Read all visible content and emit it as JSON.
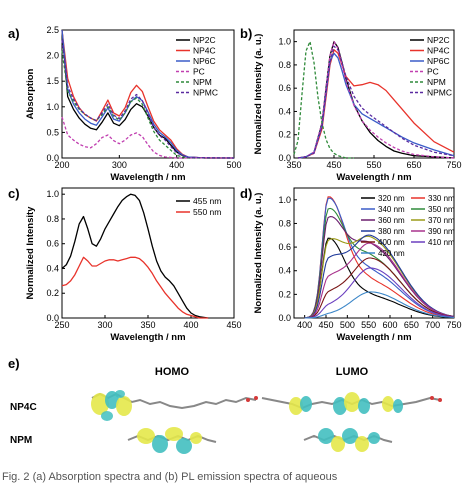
{
  "caption": "Fig. 2 (a) Absorption spectra and (b) PL emission spectra of aqueous",
  "chart_data": [
    {
      "panel": "a)",
      "type": "line",
      "xlabel": "Wavelength / nm",
      "ylabel": "Absorption",
      "xlim": [
        200,
        500
      ],
      "ylim": [
        0,
        2.5
      ],
      "xticks": [
        200,
        300,
        400,
        500
      ],
      "yticks": [
        0.0,
        0.5,
        1.0,
        1.5,
        2.0,
        2.5
      ],
      "legend": "top-right",
      "series": [
        {
          "name": "NP2C",
          "color": "#000000",
          "dash": false,
          "x": [
            200,
            210,
            220,
            230,
            240,
            250,
            260,
            270,
            280,
            290,
            300,
            310,
            320,
            330,
            340,
            350,
            360,
            370,
            380,
            390,
            400,
            410,
            420,
            450,
            500
          ],
          "y": [
            2.5,
            1.2,
            0.95,
            0.78,
            0.66,
            0.58,
            0.55,
            0.7,
            0.88,
            0.68,
            0.63,
            0.75,
            0.95,
            1.06,
            1.0,
            0.82,
            0.6,
            0.45,
            0.38,
            0.25,
            0.12,
            0.05,
            0.02,
            0.0,
            0.0
          ]
        },
        {
          "name": "NP4C",
          "color": "#e8332b",
          "dash": false,
          "x": [
            200,
            210,
            220,
            230,
            240,
            250,
            260,
            270,
            280,
            290,
            300,
            310,
            320,
            330,
            340,
            350,
            360,
            370,
            380,
            390,
            400,
            410,
            420,
            450,
            500
          ],
          "y": [
            2.5,
            1.55,
            1.2,
            0.98,
            0.85,
            0.78,
            0.72,
            0.92,
            1.13,
            0.88,
            0.82,
            0.98,
            1.28,
            1.42,
            1.3,
            1.0,
            0.72,
            0.55,
            0.45,
            0.35,
            0.18,
            0.07,
            0.02,
            0.0,
            0.0
          ]
        },
        {
          "name": "NP6C",
          "color": "#3a5cc8",
          "dash": false,
          "x": [
            200,
            210,
            220,
            230,
            240,
            250,
            260,
            270,
            280,
            290,
            300,
            310,
            320,
            330,
            340,
            350,
            360,
            370,
            380,
            390,
            400,
            410,
            420,
            450,
            500
          ],
          "y": [
            2.5,
            1.35,
            1.05,
            0.88,
            0.76,
            0.68,
            0.64,
            0.8,
            0.98,
            0.76,
            0.72,
            0.88,
            1.1,
            1.2,
            1.12,
            0.9,
            0.66,
            0.5,
            0.41,
            0.3,
            0.15,
            0.06,
            0.02,
            0.0,
            0.0
          ]
        },
        {
          "name": "PC",
          "color": "#c13fb0",
          "dash": true,
          "x": [
            200,
            210,
            220,
            230,
            240,
            250,
            260,
            270,
            280,
            290,
            300,
            310,
            320,
            330,
            340,
            350,
            360,
            370,
            380,
            400,
            500
          ],
          "y": [
            0.8,
            0.45,
            0.35,
            0.27,
            0.22,
            0.2,
            0.28,
            0.4,
            0.45,
            0.34,
            0.28,
            0.35,
            0.45,
            0.49,
            0.42,
            0.26,
            0.12,
            0.05,
            0.02,
            0.0,
            0.0
          ]
        },
        {
          "name": "NPM",
          "color": "#2f8a3a",
          "dash": true,
          "x": [
            200,
            210,
            220,
            230,
            240,
            250,
            260,
            270,
            280,
            290,
            300,
            310,
            320,
            330,
            340,
            350,
            360,
            370,
            380,
            390,
            400,
            420,
            500
          ],
          "y": [
            2.1,
            1.3,
            1.1,
            0.95,
            0.85,
            0.78,
            0.73,
            0.85,
            1.0,
            0.82,
            0.74,
            0.88,
            1.1,
            1.17,
            1.05,
            0.78,
            0.52,
            0.35,
            0.25,
            0.15,
            0.05,
            0.0,
            0.0
          ]
        },
        {
          "name": "NPMC",
          "color": "#5a2aa0",
          "dash": true,
          "x": [
            200,
            210,
            220,
            230,
            240,
            250,
            260,
            270,
            280,
            290,
            300,
            310,
            320,
            330,
            340,
            350,
            360,
            370,
            380,
            390,
            400,
            420,
            500
          ],
          "y": [
            2.3,
            1.4,
            1.15,
            0.97,
            0.86,
            0.78,
            0.73,
            0.88,
            1.05,
            0.84,
            0.77,
            0.92,
            1.15,
            1.24,
            1.12,
            0.86,
            0.6,
            0.44,
            0.35,
            0.22,
            0.1,
            0.01,
            0.0
          ]
        }
      ]
    },
    {
      "panel": "b)",
      "type": "line",
      "xlabel": "Wavelength / nm",
      "ylabel": "Normalized Intensity (a. u.)",
      "xlim": [
        350,
        750
      ],
      "ylim": [
        0,
        1.1
      ],
      "xticks": [
        350,
        450,
        550,
        650,
        750
      ],
      "yticks": [
        0.0,
        0.2,
        0.4,
        0.6,
        0.8,
        1.0
      ],
      "legend": "top-right",
      "series": [
        {
          "name": "NP2C",
          "color": "#000000",
          "dash": false,
          "x": [
            360,
            380,
            400,
            420,
            430,
            440,
            450,
            460,
            470,
            480,
            500,
            520,
            540,
            560,
            580,
            600,
            620,
            650,
            700,
            750
          ],
          "y": [
            0.0,
            0.01,
            0.05,
            0.3,
            0.6,
            0.88,
            1.0,
            0.95,
            0.82,
            0.68,
            0.46,
            0.32,
            0.22,
            0.15,
            0.1,
            0.06,
            0.04,
            0.02,
            0.01,
            0.0
          ]
        },
        {
          "name": "NP4C",
          "color": "#e8332b",
          "dash": false,
          "x": [
            360,
            380,
            400,
            420,
            430,
            440,
            450,
            460,
            470,
            480,
            500,
            520,
            540,
            560,
            580,
            600,
            620,
            650,
            700,
            750
          ],
          "y": [
            0.0,
            0.01,
            0.04,
            0.25,
            0.52,
            0.8,
            0.93,
            0.9,
            0.8,
            0.7,
            0.62,
            0.63,
            0.65,
            0.63,
            0.58,
            0.5,
            0.42,
            0.3,
            0.14,
            0.05
          ]
        },
        {
          "name": "NP6C",
          "color": "#3a5cc8",
          "dash": false,
          "x": [
            360,
            380,
            400,
            420,
            430,
            440,
            450,
            460,
            470,
            480,
            500,
            520,
            540,
            560,
            580,
            600,
            620,
            650,
            700,
            750
          ],
          "y": [
            0.0,
            0.01,
            0.05,
            0.28,
            0.56,
            0.83,
            0.9,
            0.86,
            0.75,
            0.63,
            0.46,
            0.38,
            0.34,
            0.3,
            0.26,
            0.22,
            0.18,
            0.13,
            0.07,
            0.02
          ]
        },
        {
          "name": "PC",
          "color": "#c13fb0",
          "dash": true,
          "x": [
            360,
            380,
            400,
            420,
            430,
            440,
            450,
            460,
            470,
            480,
            500,
            520,
            540,
            560,
            580,
            600,
            620,
            650,
            700,
            750
          ],
          "y": [
            0.0,
            0.01,
            0.05,
            0.3,
            0.6,
            0.88,
            1.0,
            0.94,
            0.8,
            0.66,
            0.45,
            0.32,
            0.24,
            0.18,
            0.13,
            0.09,
            0.06,
            0.03,
            0.01,
            0.0
          ]
        },
        {
          "name": "NPM",
          "color": "#2f8a3a",
          "dash": true,
          "x": [
            350,
            360,
            370,
            380,
            390,
            400,
            410,
            420,
            430,
            440,
            450,
            460,
            470,
            480,
            500
          ],
          "y": [
            0.03,
            0.15,
            0.55,
            0.92,
            1.0,
            0.82,
            0.52,
            0.3,
            0.16,
            0.08,
            0.04,
            0.02,
            0.01,
            0.0,
            0.0
          ]
        },
        {
          "name": "NPMC",
          "color": "#5a2aa0",
          "dash": true,
          "x": [
            360,
            380,
            400,
            420,
            430,
            440,
            450,
            460,
            470,
            480,
            500,
            520,
            540,
            560,
            580,
            600,
            620,
            650,
            700,
            750
          ],
          "y": [
            0.0,
            0.01,
            0.04,
            0.27,
            0.55,
            0.82,
            0.96,
            0.93,
            0.82,
            0.7,
            0.53,
            0.43,
            0.37,
            0.32,
            0.27,
            0.22,
            0.17,
            0.11,
            0.05,
            0.02
          ]
        }
      ]
    },
    {
      "panel": "c)",
      "type": "line",
      "xlabel": "Wavelength / nm",
      "ylabel": "Normalized Intensity",
      "xlim": [
        250,
        450
      ],
      "ylim": [
        0,
        1.05
      ],
      "xticks": [
        250,
        300,
        350,
        400,
        450
      ],
      "yticks": [
        0.0,
        0.2,
        0.4,
        0.6,
        0.8,
        1.0
      ],
      "legend": "top-right",
      "series": [
        {
          "name": "455 nm",
          "color": "#000000",
          "dash": false,
          "x": [
            250,
            255,
            260,
            265,
            270,
            275,
            280,
            285,
            290,
            295,
            300,
            305,
            310,
            315,
            320,
            325,
            330,
            335,
            340,
            345,
            350,
            355,
            360,
            365,
            370,
            375,
            380,
            385,
            390,
            395,
            400,
            405,
            410,
            420
          ],
          "y": [
            0.4,
            0.43,
            0.5,
            0.62,
            0.76,
            0.82,
            0.72,
            0.6,
            0.58,
            0.64,
            0.72,
            0.78,
            0.84,
            0.9,
            0.95,
            0.98,
            1.0,
            0.99,
            0.95,
            0.85,
            0.72,
            0.58,
            0.46,
            0.38,
            0.33,
            0.3,
            0.26,
            0.2,
            0.14,
            0.08,
            0.04,
            0.02,
            0.01,
            0.0
          ]
        },
        {
          "name": "550 nm",
          "color": "#e8332b",
          "dash": false,
          "x": [
            250,
            255,
            260,
            265,
            270,
            275,
            280,
            285,
            290,
            295,
            300,
            305,
            310,
            315,
            320,
            325,
            330,
            335,
            340,
            345,
            350,
            355,
            360,
            365,
            370,
            375,
            380,
            385,
            390,
            395,
            400,
            405,
            410,
            420
          ],
          "y": [
            0.26,
            0.27,
            0.3,
            0.35,
            0.42,
            0.49,
            0.46,
            0.42,
            0.42,
            0.44,
            0.46,
            0.47,
            0.47,
            0.46,
            0.47,
            0.48,
            0.49,
            0.49,
            0.48,
            0.45,
            0.41,
            0.36,
            0.3,
            0.25,
            0.2,
            0.16,
            0.12,
            0.08,
            0.05,
            0.03,
            0.02,
            0.01,
            0.0,
            0.0
          ]
        }
      ]
    },
    {
      "panel": "d)",
      "type": "line",
      "xlabel": "Wavelength / nm",
      "ylabel": "Normalized Intensity (a. u.)",
      "xlim": [
        375,
        750
      ],
      "ylim": [
        0,
        1.1
      ],
      "xticks": [
        400,
        450,
        500,
        550,
        600,
        650,
        700,
        750
      ],
      "yticks": [
        0.0,
        0.2,
        0.4,
        0.6,
        0.8,
        1.0
      ],
      "legend": "top-right",
      "series": [
        {
          "name": "320 nm",
          "color": "#000000",
          "peak_blue": 0.66,
          "peak_red": 0.18
        },
        {
          "name": "330 nm",
          "color": "#e8332b",
          "peak_blue": 1.0,
          "peak_red": 0.3
        },
        {
          "name": "340 nm",
          "color": "#3a5cc8",
          "peak_blue": 0.98,
          "peak_red": 0.38
        },
        {
          "name": "350 nm",
          "color": "#2f8a3a",
          "peak_blue": 0.88,
          "peak_red": 0.5
        },
        {
          "name": "360 nm",
          "color": "#6b1e6e",
          "peak_blue": 0.8,
          "peak_red": 0.6
        },
        {
          "name": "370 nm",
          "color": "#9a9a18",
          "peak_blue": 0.6,
          "peak_red": 0.66
        },
        {
          "name": "380 nm",
          "color": "#1f3a9a",
          "peak_blue": 0.45,
          "peak_red": 0.68
        },
        {
          "name": "390 nm",
          "color": "#a8328c",
          "peak_blue": 0.3,
          "peak_red": 0.62
        },
        {
          "name": "400 nm",
          "color": "#7a1616",
          "peak_blue": 0.18,
          "peak_red": 0.5
        },
        {
          "name": "410 nm",
          "color": "#6a3fbf",
          "peak_blue": 0.08,
          "peak_red": 0.42
        },
        {
          "name": "420 nm",
          "color": "#3b86c8",
          "peak_blue": 0.02,
          "peak_red": 0.22
        }
      ]
    }
  ],
  "panel_e": {
    "label": "e)",
    "homo": "HOMO",
    "lumo": "LUMO",
    "rows": [
      "NP4C",
      "NPM"
    ]
  }
}
